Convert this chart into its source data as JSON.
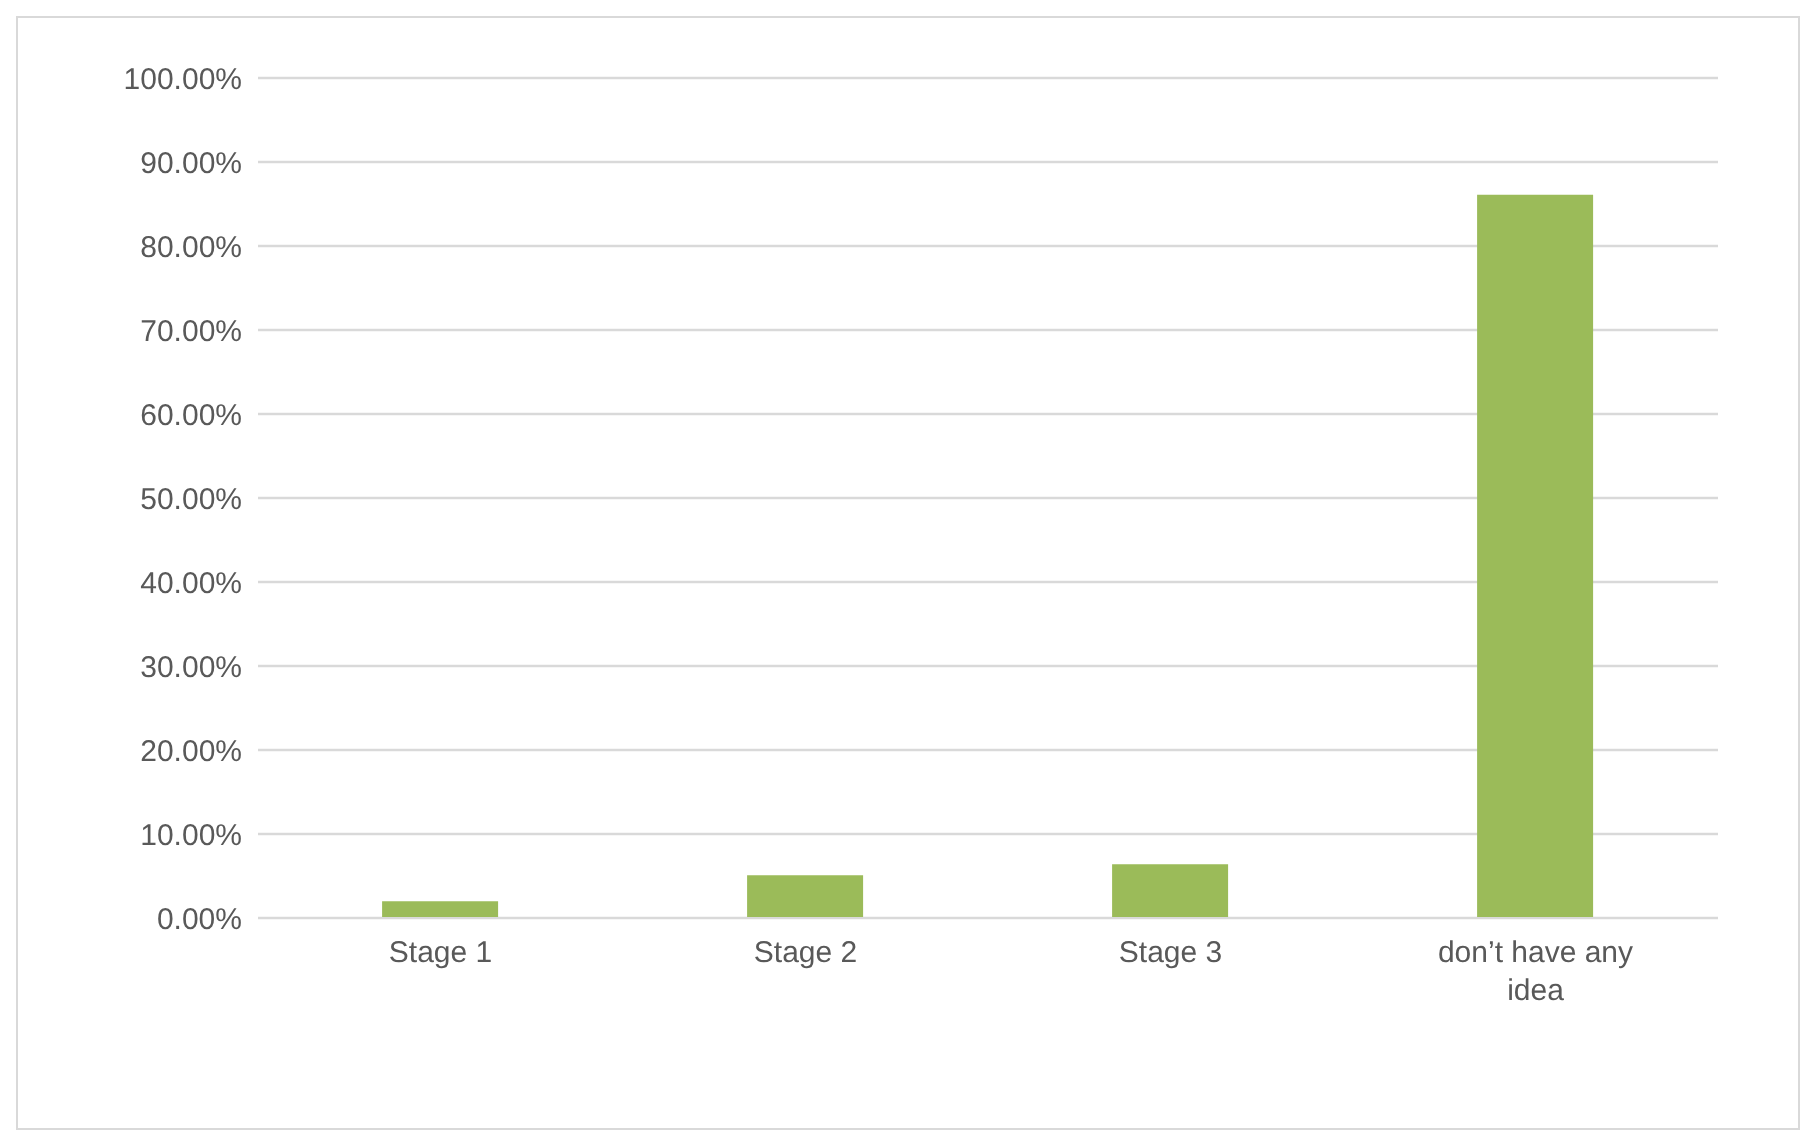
{
  "chart_data": {
    "type": "bar",
    "categories": [
      "Stage 1",
      "Stage 2",
      "Stage 3",
      "don’t have any idea"
    ],
    "values": [
      2.0,
      5.1,
      6.4,
      86.1
    ],
    "color": "#9bbb59",
    "ylim": [
      0,
      100
    ],
    "yticks": [
      {
        "value": 0,
        "label": "0.00%"
      },
      {
        "value": 10,
        "label": "10.00%"
      },
      {
        "value": 20,
        "label": "20.00%"
      },
      {
        "value": 30,
        "label": "30.00%"
      },
      {
        "value": 40,
        "label": "40.00%"
      },
      {
        "value": 50,
        "label": "50.00%"
      },
      {
        "value": 60,
        "label": "60.00%"
      },
      {
        "value": 70,
        "label": "70.00%"
      },
      {
        "value": 80,
        "label": "80.00%"
      },
      {
        "value": 90,
        "label": "90.00%"
      },
      {
        "value": 100,
        "label": "100.00%"
      }
    ],
    "grid": "y"
  }
}
